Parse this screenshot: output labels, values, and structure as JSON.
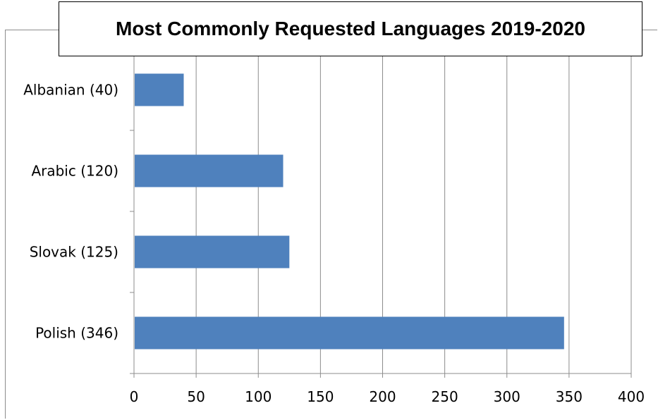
{
  "chart_data": {
    "type": "bar",
    "orientation": "horizontal",
    "title": "Most Commonly Requested Languages 2019-2020",
    "categories": [
      "Albanian (40)",
      "Arabic (120)",
      "Slovak (125)",
      "Polish (346)"
    ],
    "values": [
      40,
      120,
      125,
      346
    ],
    "xlim": [
      0,
      400
    ],
    "xticks": [
      "0",
      "50",
      "100",
      "150",
      "200",
      "250",
      "300",
      "350",
      "400"
    ],
    "grid": true,
    "legend": "none",
    "bar_color": "#4f81bd"
  }
}
